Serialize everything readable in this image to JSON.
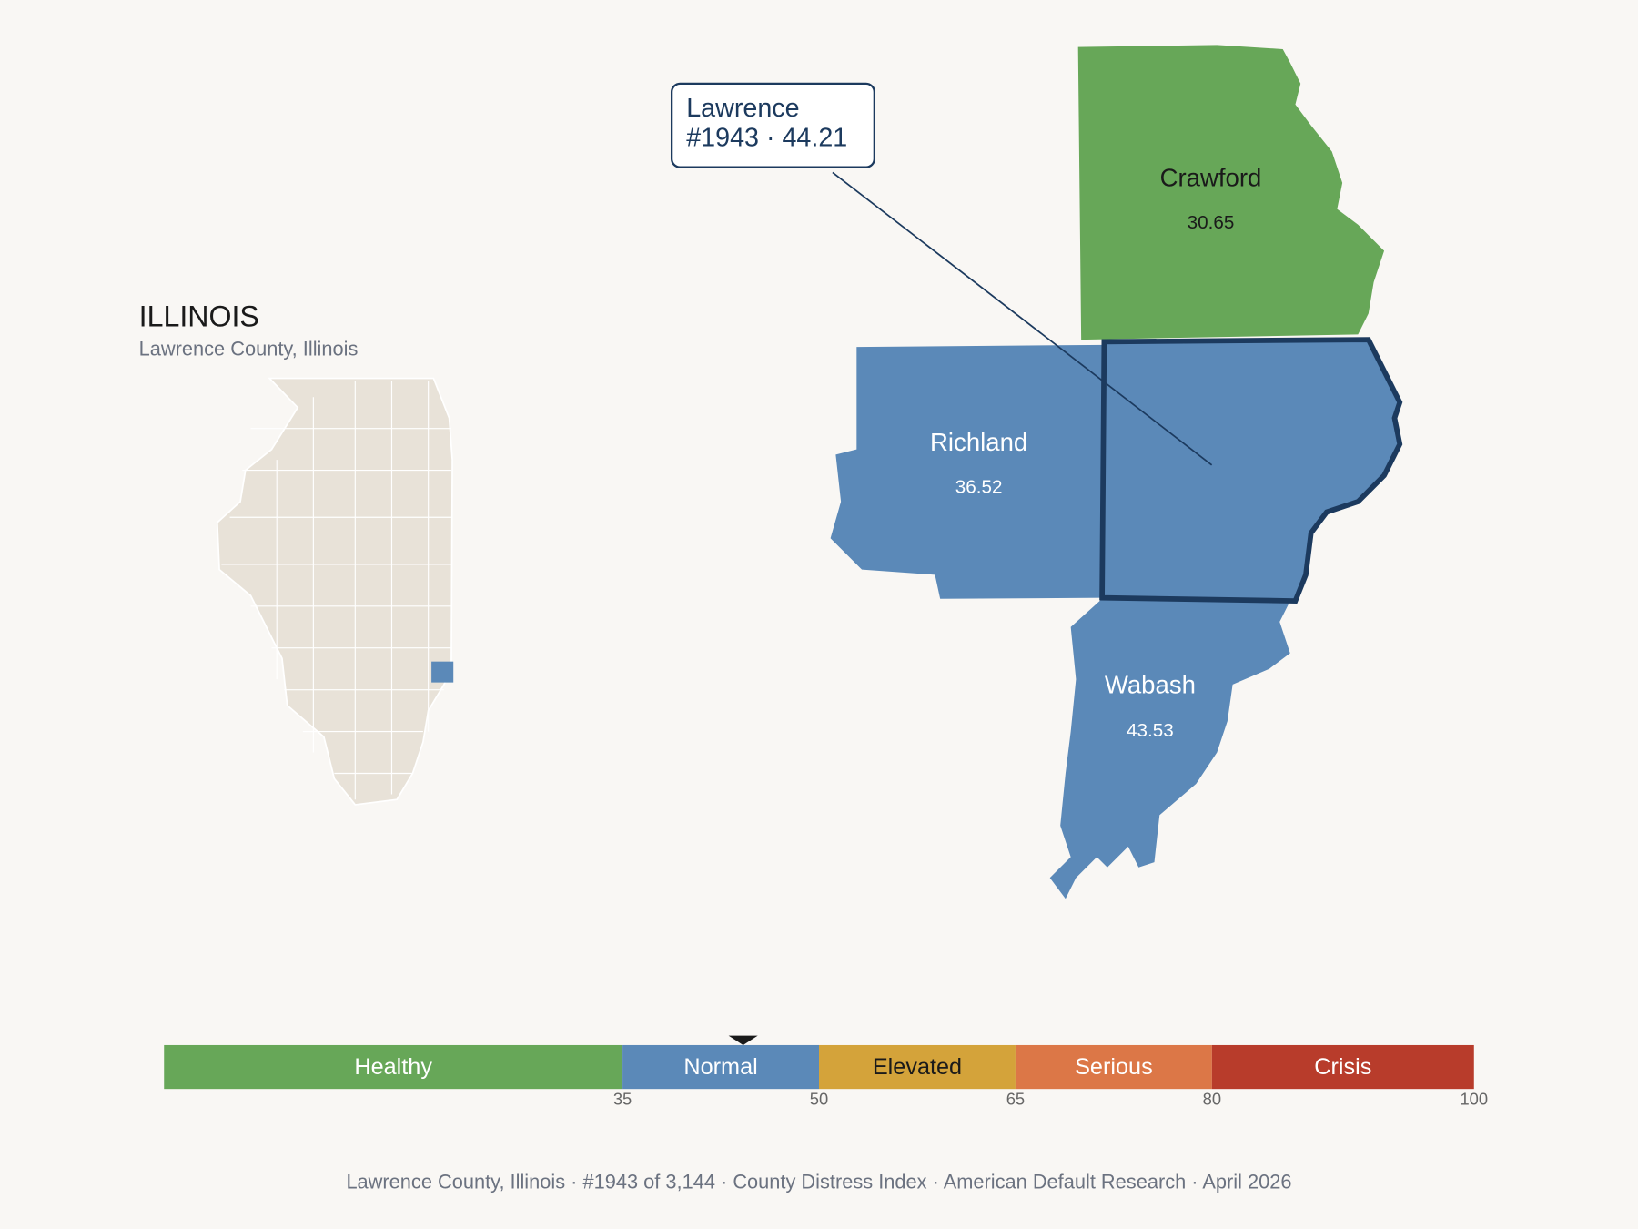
{
  "header": {
    "title": "ILLINOIS",
    "subtitle": "Lawrence County, Illinois"
  },
  "callout": {
    "name": "Lawrence",
    "detail": "#1943 · 44.21"
  },
  "counties": [
    {
      "name": "Crawford",
      "score": 30.65
    },
    {
      "name": "Richland",
      "score": 36.52
    },
    {
      "name": "Lawrence",
      "score": 44.21
    },
    {
      "name": "Wabash",
      "score": 43.53
    }
  ],
  "selected_county": 2,
  "scale": {
    "range": [
      0,
      100
    ],
    "bands": [
      {
        "label": "Healthy",
        "color": "#67a758",
        "text_color": "#ffffff"
      },
      {
        "label": "Normal",
        "color": "#5b89b8",
        "text_color": "#ffffff"
      },
      {
        "label": "Elevated",
        "color": "#d4a33a",
        "text_color": "#1a1a1a"
      },
      {
        "label": "Serious",
        "color": "#dc7747",
        "text_color": "#ffffff"
      },
      {
        "label": "Crisis",
        "color": "#b83c2b",
        "text_color": "#ffffff"
      }
    ],
    "ticks": [
      35,
      50,
      65,
      80,
      100
    ]
  },
  "footer": "Lawrence County, Illinois  ·  #1943 of 3,144  ·  County Distress Index  ·  American Default Research  ·  April 2026"
}
